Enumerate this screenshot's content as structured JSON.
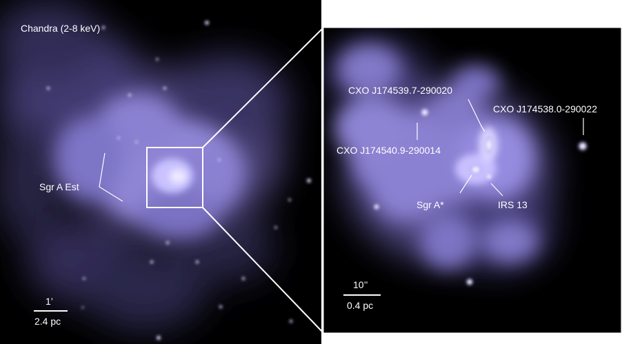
{
  "left_panel": {
    "title": "Chandra (2-8 keV)",
    "region_label": "Sgr A Est",
    "scale_bar": {
      "angular": "1’",
      "physical": "2.4 pc"
    }
  },
  "right_panel": {
    "sources": {
      "src1": "CXO J174539.7-290020",
      "src2": "CXO J174538.0-290022",
      "src3": "CXO J174540.9-290014",
      "src4": "Sgr A*",
      "src5": "IRS 13"
    },
    "scale_bar": {
      "angular": "10’’",
      "physical": "0.4 pc"
    }
  },
  "colors": {
    "background": "#000000",
    "emission": "#9a90e8",
    "frame": "#ffffff"
  }
}
